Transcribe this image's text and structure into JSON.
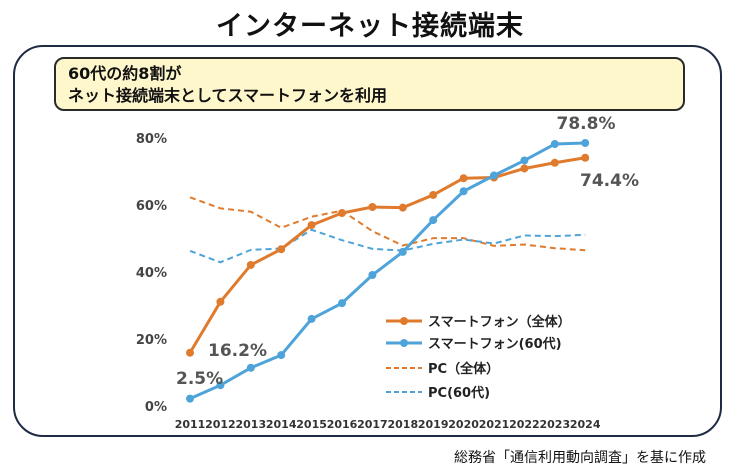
{
  "page": {
    "title": "インターネット接続端末",
    "callout_line1": "60代の約8割が",
    "callout_line2": "ネット接続端末としてスマートフォンを利用",
    "source": "総務省「通信利用動向調査」を基に作成"
  },
  "chart_data": {
    "type": "line",
    "title": "インターネット接続端末",
    "xlabel": "",
    "ylabel": "",
    "ylim": [
      0,
      80
    ],
    "yticks": [
      "0%",
      "20%",
      "40%",
      "60%",
      "80%"
    ],
    "ytick_values": [
      0,
      20,
      40,
      60,
      80
    ],
    "categories": [
      "2011",
      "2012",
      "2013",
      "2014",
      "2015",
      "2016",
      "2017",
      "2018",
      "2019",
      "2020",
      "2021",
      "2022",
      "2023",
      "2024"
    ],
    "series": [
      {
        "name": "スマートフォン（全体）",
        "color": "#e07b2e",
        "dashed": false,
        "values": [
          16.2,
          31.4,
          42.4,
          47.1,
          54.3,
          57.9,
          59.7,
          59.5,
          63.3,
          68.3,
          68.5,
          71.2,
          72.9,
          74.4
        ]
      },
      {
        "name": "スマートフォン(60代)",
        "color": "#4ea3d9",
        "dashed": false,
        "values": [
          2.5,
          6.5,
          11.7,
          15.5,
          26.3,
          31.0,
          39.4,
          46.3,
          55.8,
          64.4,
          69.1,
          73.6,
          78.5,
          78.8
        ]
      },
      {
        "name": "PC（全体）",
        "color": "#e07b2e",
        "dashed": true,
        "values": [
          62.6,
          59.3,
          58.3,
          53.5,
          56.8,
          58.6,
          52.5,
          48.2,
          50.4,
          50.4,
          48.1,
          48.5,
          47.4,
          46.8
        ]
      },
      {
        "name": "PC(60代)",
        "color": "#4ea3d9",
        "dashed": true,
        "values": [
          46.6,
          43.2,
          46.9,
          47.3,
          52.9,
          49.8,
          47.2,
          46.7,
          48.7,
          50.0,
          48.8,
          51.2,
          51.0,
          51.4
        ]
      }
    ],
    "annotations": [
      "16.2%",
      "2.5%",
      "78.8%",
      "74.4%"
    ],
    "legend_position": "bottom-right"
  }
}
